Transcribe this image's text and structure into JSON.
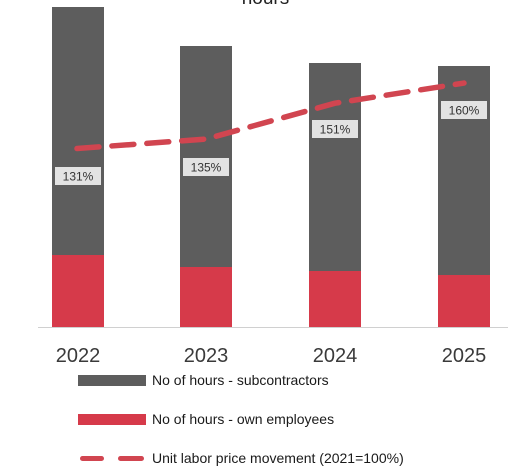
{
  "chart_data": {
    "type": "bar",
    "stacked": true,
    "title_fragment": "hours",
    "categories": [
      "2022",
      "2023",
      "2024",
      "2025"
    ],
    "series": [
      {
        "name": "No of hours - own employees",
        "type": "bar",
        "color": "#d63a4a",
        "values": [
          72,
          60,
          56,
          52
        ]
      },
      {
        "name": "No of hours - subcontractors",
        "type": "bar",
        "color": "#5d5d5d",
        "values": [
          248,
          221,
          208,
          209
        ]
      },
      {
        "name": "Unit labor price movement (2021=100%)",
        "type": "line",
        "style": "dashed",
        "color": "#d14550",
        "values": [
          131,
          135,
          151,
          160
        ],
        "labels": [
          "131%",
          "135%",
          "151%",
          "160%"
        ]
      }
    ],
    "legend_position": "bottom",
    "grid": false
  }
}
